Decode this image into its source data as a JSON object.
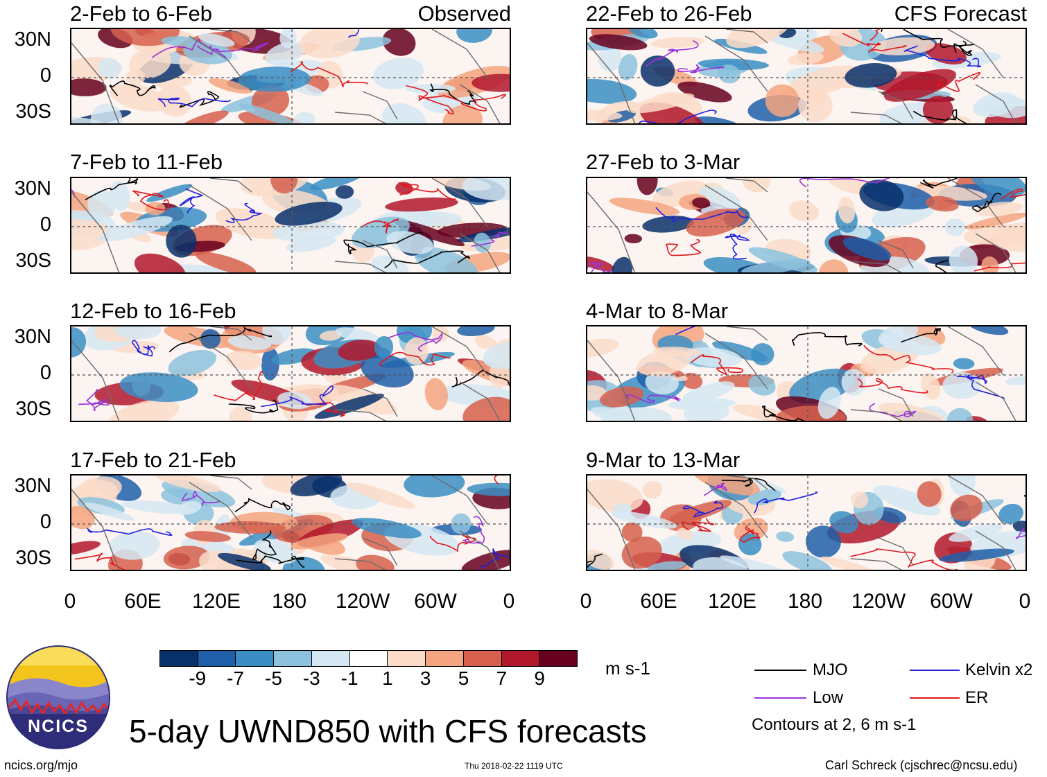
{
  "panels": [
    {
      "title": "2-Feb to 6-Feb",
      "tag": "Observed"
    },
    {
      "title": "7-Feb to 11-Feb",
      "tag": ""
    },
    {
      "title": "12-Feb to 16-Feb",
      "tag": ""
    },
    {
      "title": "17-Feb to 21-Feb",
      "tag": ""
    },
    {
      "title": "22-Feb to 26-Feb",
      "tag": "CFS Forecast"
    },
    {
      "title": "27-Feb to 3-Mar",
      "tag": ""
    },
    {
      "title": "4-Mar to 8-Mar",
      "tag": ""
    },
    {
      "title": "9-Mar to 13-Mar",
      "tag": ""
    }
  ],
  "lat_labels": [
    "30N",
    "0",
    "30S"
  ],
  "lon_labels": [
    "0",
    "60E",
    "120E",
    "180",
    "120W",
    "60W",
    "0"
  ],
  "colorbar": {
    "colors": [
      "#08306b",
      "#1f5fa8",
      "#3b8ec4",
      "#8cc2dd",
      "#d5e7f2",
      "#ffffff",
      "#fcdcc9",
      "#f4a480",
      "#d6604d",
      "#b2182b",
      "#67001f"
    ],
    "ticks": [
      "-9",
      "-7",
      "-5",
      "-3",
      "-1",
      "1",
      "3",
      "5",
      "7",
      "9"
    ],
    "units": "m s-1"
  },
  "legend": {
    "mjo": {
      "label": "MJO",
      "color": "#000000"
    },
    "kelvin": {
      "label": "Kelvin x2",
      "color": "#1f1fe0"
    },
    "low": {
      "label": "Low",
      "color": "#9b30d9"
    },
    "er": {
      "label": "ER",
      "color": "#e0161c"
    },
    "note": "Contours at 2, 6 m s-1"
  },
  "title": "5-day UWND850 with CFS forecasts",
  "logo_text": "NCICS",
  "footer": {
    "url": "ncics.org/mjo",
    "timestamp": "Thu 2018-02-22 1119 UTC",
    "credit": "Carl Schreck (cjschrec@ncsu.edu)"
  }
}
